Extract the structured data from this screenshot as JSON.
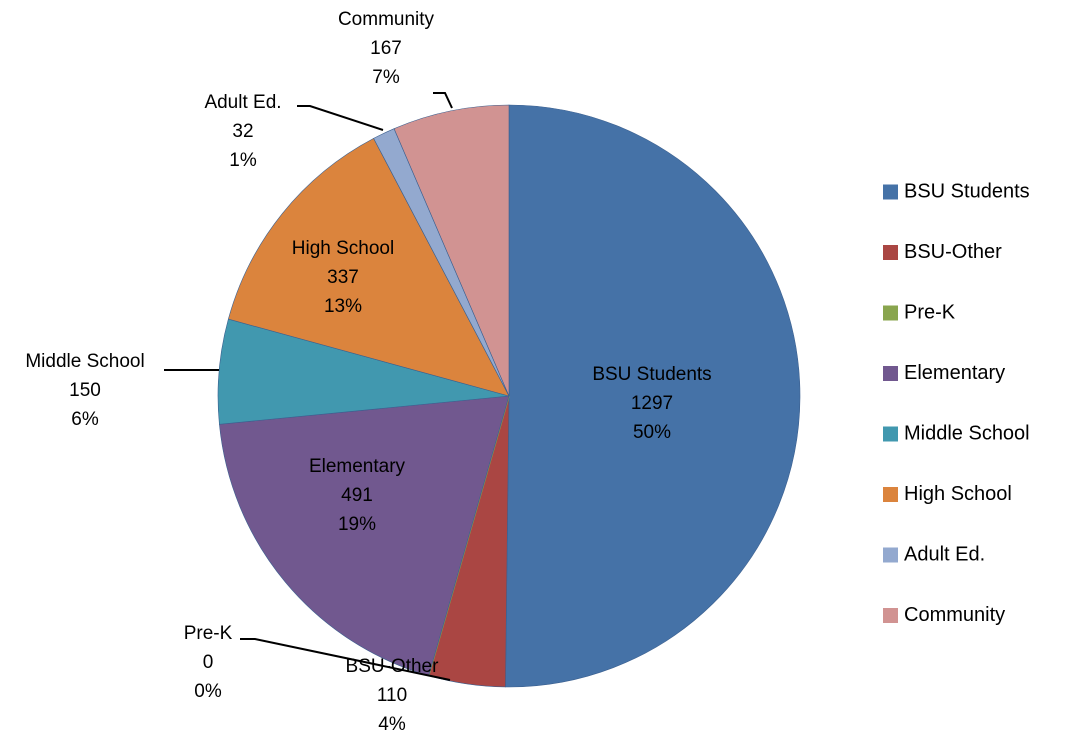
{
  "chart_data": {
    "type": "pie",
    "title": "",
    "legend_position": "right",
    "slices": [
      {
        "label": "BSU Students",
        "value": 1297,
        "percent": "50%",
        "color": "#4572A7",
        "label_mode": "inside"
      },
      {
        "label": "BSU-Other",
        "value": 110,
        "percent": "4%",
        "color": "#AA4643",
        "label_mode": "outside-below"
      },
      {
        "label": "Pre-K",
        "value": 0,
        "percent": "0%",
        "color": "#89A54E",
        "label_mode": "leader"
      },
      {
        "label": "Elementary",
        "value": 491,
        "percent": "19%",
        "color": "#71588F",
        "label_mode": "inside"
      },
      {
        "label": "Middle School",
        "value": 150,
        "percent": "6%",
        "color": "#4198AF",
        "label_mode": "leader"
      },
      {
        "label": "High School",
        "value": 337,
        "percent": "13%",
        "color": "#DB843D",
        "label_mode": "inside"
      },
      {
        "label": "Adult Ed.",
        "value": 32,
        "percent": "1%",
        "color": "#93A9CF",
        "label_mode": "leader"
      },
      {
        "label": "Community",
        "value": 167,
        "percent": "7%",
        "color": "#D19392",
        "label_mode": "leader"
      }
    ]
  }
}
